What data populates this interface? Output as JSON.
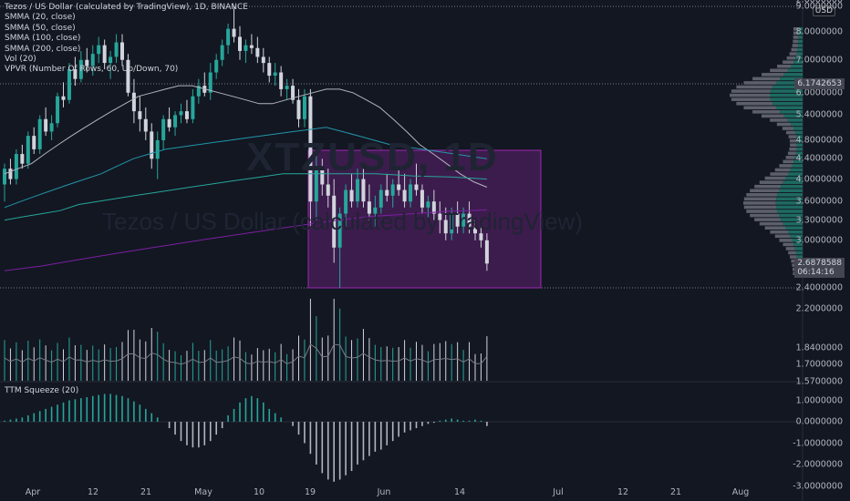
{
  "legend": {
    "title": "Tezos / US Dollar (calculated by TradingView), 1D, BINANCE",
    "lines": [
      "SMMA (20, close)",
      "SMMA (50, close)",
      "SMMA (100, close)",
      "SMMA (200, close)",
      "Vol (20)",
      "VPVR (Number Of Rows, 60, Up/Down, 70)"
    ]
  },
  "oscillator_label": "TTM Squeeze (20)",
  "watermark": {
    "symbol": "XTZUSD, 1D",
    "name": "Tezos / US Dollar (calculated by TradingView)"
  },
  "axis": {
    "currency": "USD"
  },
  "price_badge": {
    "value": "2.6878588",
    "countdown": "06:14:16"
  },
  "highlight_badge": {
    "value": "6.1742653"
  },
  "colors": {
    "up": "#26a69a",
    "down": "#d1d4dc",
    "bg": "#131722",
    "box": "#9c27b0",
    "sma20": "#b2b5be",
    "sma50": "#2196a8",
    "sma100": "#26a69a",
    "sma200": "#7b1fa2"
  },
  "chart_data": [
    {
      "type": "candlestick",
      "title": "Tezos / US Dollar (calculated by TradingView), 1D, BINANCE",
      "y_scale": "log",
      "y_ticks": [
        "9.0000000",
        "8.0000000",
        "7.0000000",
        "6.0000000",
        "5.4000000",
        "4.8000000",
        "4.4000000",
        "4.0000000",
        "3.6000000",
        "3.3000000",
        "3.0000000",
        "2.4000000",
        "2.2000000",
        "2.0000000",
        "1.8400000",
        "1.7000000",
        "1.5700000"
      ],
      "x_ticks": [
        "Apr",
        "12",
        "21",
        "May",
        "10",
        "19",
        "Jun",
        "14",
        "Jul",
        "12",
        "21",
        "Aug"
      ],
      "candles": [
        [
          3.9,
          4.3,
          3.6,
          4.2
        ],
        [
          4.2,
          4.4,
          3.9,
          4.0
        ],
        [
          4.0,
          4.6,
          3.9,
          4.5
        ],
        [
          4.5,
          4.7,
          4.2,
          4.3
        ],
        [
          4.3,
          5.0,
          4.2,
          4.9
        ],
        [
          4.9,
          5.1,
          4.5,
          4.6
        ],
        [
          4.6,
          5.4,
          4.5,
          5.3
        ],
        [
          5.3,
          5.6,
          4.9,
          5.0
        ],
        [
          5.0,
          5.4,
          4.8,
          5.2
        ],
        [
          5.2,
          6.0,
          5.1,
          5.9
        ],
        [
          5.9,
          6.3,
          5.6,
          5.8
        ],
        [
          5.8,
          6.9,
          5.7,
          6.7
        ],
        [
          6.7,
          7.1,
          6.2,
          6.4
        ],
        [
          6.4,
          7.3,
          6.3,
          7.0
        ],
        [
          7.0,
          7.4,
          6.6,
          6.8
        ],
        [
          6.8,
          7.5,
          6.5,
          7.2
        ],
        [
          7.2,
          7.8,
          6.9,
          7.5
        ],
        [
          7.5,
          7.7,
          6.7,
          6.9
        ],
        [
          6.9,
          7.3,
          6.4,
          7.1
        ],
        [
          7.1,
          7.9,
          6.9,
          7.6
        ],
        [
          7.6,
          7.9,
          6.8,
          7.0
        ],
        [
          7.0,
          7.2,
          5.9,
          6.0
        ],
        [
          6.0,
          6.4,
          5.2,
          5.5
        ],
        [
          5.5,
          5.9,
          5.0,
          5.3
        ],
        [
          5.3,
          5.6,
          4.8,
          5.0
        ],
        [
          5.0,
          5.2,
          4.2,
          4.4
        ],
        [
          4.4,
          5.0,
          4.0,
          4.8
        ],
        [
          4.8,
          5.4,
          4.6,
          5.3
        ],
        [
          5.3,
          5.6,
          5.0,
          5.1
        ],
        [
          5.1,
          5.5,
          4.9,
          5.4
        ],
        [
          5.4,
          5.7,
          5.2,
          5.5
        ],
        [
          5.5,
          5.8,
          5.2,
          5.3
        ],
        [
          5.3,
          6.1,
          5.2,
          5.9
        ],
        [
          5.9,
          6.4,
          5.7,
          6.2
        ],
        [
          6.2,
          6.6,
          5.9,
          6.0
        ],
        [
          6.0,
          6.9,
          5.8,
          6.6
        ],
        [
          6.6,
          7.2,
          6.4,
          7.0
        ],
        [
          7.0,
          7.7,
          6.8,
          7.5
        ],
        [
          7.5,
          8.3,
          7.2,
          8.1
        ],
        [
          8.1,
          9.0,
          7.6,
          7.8
        ],
        [
          7.8,
          8.2,
          7.0,
          7.3
        ],
        [
          7.3,
          7.7,
          6.9,
          7.5
        ],
        [
          7.5,
          7.9,
          7.2,
          7.4
        ],
        [
          7.4,
          7.8,
          6.9,
          7.1
        ],
        [
          7.1,
          7.4,
          6.6,
          6.9
        ],
        [
          6.9,
          7.1,
          6.3,
          6.5
        ],
        [
          6.5,
          6.9,
          6.2,
          6.6
        ],
        [
          6.6,
          6.8,
          5.9,
          6.1
        ],
        [
          6.1,
          6.4,
          5.8,
          6.2
        ],
        [
          6.2,
          6.4,
          5.7,
          5.8
        ],
        [
          5.8,
          6.1,
          5.1,
          5.3
        ],
        [
          5.3,
          6.1,
          5.1,
          5.9
        ],
        [
          5.9,
          6.1,
          3.2,
          3.6
        ],
        [
          3.6,
          4.5,
          3.3,
          4.2
        ],
        [
          4.2,
          4.4,
          3.7,
          3.9
        ],
        [
          3.9,
          4.2,
          3.5,
          3.7
        ],
        [
          3.7,
          4.0,
          2.7,
          2.9
        ],
        [
          2.9,
          3.5,
          2.4,
          3.4
        ],
        [
          3.4,
          3.9,
          3.2,
          3.8
        ],
        [
          3.8,
          4.1,
          3.5,
          3.6
        ],
        [
          3.6,
          4.2,
          3.5,
          4.0
        ],
        [
          4.0,
          4.3,
          3.5,
          3.6
        ],
        [
          3.6,
          3.9,
          3.3,
          3.4
        ],
        [
          3.4,
          3.7,
          3.2,
          3.5
        ],
        [
          3.5,
          3.9,
          3.4,
          3.8
        ],
        [
          3.8,
          4.1,
          3.6,
          3.7
        ],
        [
          3.7,
          4.0,
          3.5,
          3.9
        ],
        [
          3.9,
          4.2,
          3.7,
          3.8
        ],
        [
          3.8,
          4.1,
          3.5,
          3.6
        ],
        [
          3.6,
          4.0,
          3.5,
          3.9
        ],
        [
          3.9,
          4.3,
          3.7,
          3.8
        ],
        [
          3.8,
          3.9,
          3.4,
          3.5
        ],
        [
          3.5,
          3.7,
          3.3,
          3.6
        ],
        [
          3.6,
          3.8,
          3.3,
          3.4
        ],
        [
          3.4,
          3.6,
          3.1,
          3.3
        ],
        [
          3.3,
          3.5,
          3.0,
          3.1
        ],
        [
          3.1,
          3.5,
          3.0,
          3.4
        ],
        [
          3.4,
          3.6,
          3.1,
          3.2
        ],
        [
          3.2,
          3.5,
          3.1,
          3.4
        ],
        [
          3.4,
          3.6,
          3.1,
          3.2
        ],
        [
          3.2,
          3.3,
          3.0,
          3.1
        ],
        [
          3.1,
          3.2,
          2.9,
          3.0
        ],
        [
          3.0,
          3.1,
          2.6,
          2.69
        ]
      ],
      "sma": {
        "SMMA (20, close)": [
          4.1,
          4.2,
          4.3,
          4.5,
          4.7,
          4.9,
          5.1,
          5.3,
          5.5,
          5.7,
          5.9,
          6.0,
          6.1,
          6.2,
          6.2,
          6.1,
          6.0,
          5.9,
          5.8,
          5.7,
          5.7,
          5.8,
          5.9,
          6.0,
          6.1,
          6.1,
          6.0,
          5.8,
          5.6,
          5.3,
          5.0,
          4.7,
          4.5,
          4.3,
          4.1,
          3.95,
          3.85
        ],
        "SMMA (50, close)": [
          3.5,
          3.6,
          3.7,
          3.8,
          3.9,
          4.0,
          4.1,
          4.25,
          4.4,
          4.5,
          4.6,
          4.65,
          4.7,
          4.75,
          4.8,
          4.85,
          4.9,
          4.95,
          5.0,
          5.05,
          5.1,
          5.0,
          4.9,
          4.8,
          4.7,
          4.65,
          4.6,
          4.55,
          4.5,
          4.45,
          4.4
        ],
        "SMMA (100, close)": [
          3.3,
          3.35,
          3.4,
          3.45,
          3.55,
          3.6,
          3.65,
          3.7,
          3.75,
          3.8,
          3.85,
          3.9,
          3.95,
          4.0,
          4.05,
          4.1,
          4.1,
          4.1,
          4.1,
          4.1,
          4.1,
          4.08,
          4.06,
          4.05,
          4.04,
          4.02,
          4.0
        ],
        "SMMA (200, close)": [
          2.6,
          2.63,
          2.66,
          2.7,
          2.74,
          2.78,
          2.82,
          2.86,
          2.9,
          2.94,
          2.98,
          3.02,
          3.06,
          3.1,
          3.14,
          3.18,
          3.22,
          3.26,
          3.3,
          3.33,
          3.36,
          3.38,
          3.4,
          3.42,
          3.44,
          3.45,
          3.46
        ]
      }
    },
    {
      "type": "bar",
      "title": "TTM Squeeze (20)",
      "y_ticks": [
        "1.0000000",
        "0.0000000",
        "-1.0000000",
        "-2.0000000",
        "-3.0000000"
      ],
      "values": [
        0.05,
        0.1,
        0.15,
        0.2,
        0.3,
        0.4,
        0.5,
        0.6,
        0.7,
        0.8,
        0.9,
        1.0,
        1.05,
        1.1,
        1.15,
        1.2,
        1.25,
        1.3,
        1.3,
        1.25,
        1.2,
        1.1,
        0.95,
        0.8,
        0.6,
        0.4,
        0.2,
        0.0,
        -0.3,
        -0.6,
        -0.9,
        -1.1,
        -1.2,
        -1.2,
        -1.1,
        -0.9,
        -0.6,
        -0.3,
        0.3,
        0.6,
        0.9,
        1.1,
        1.2,
        1.1,
        0.9,
        0.6,
        0.4,
        0.2,
        0.0,
        -0.2,
        -0.6,
        -1.0,
        -1.5,
        -2.0,
        -2.4,
        -2.7,
        -2.8,
        -2.7,
        -2.5,
        -2.3,
        -2.0,
        -1.8,
        -1.6,
        -1.4,
        -1.3,
        -1.1,
        -0.9,
        -0.7,
        -0.5,
        -0.4,
        -0.3,
        -0.2,
        -0.1,
        -0.05,
        0.05,
        0.1,
        0.15,
        0.1,
        0.05,
        0.05,
        0.1,
        0.05,
        -0.2
      ]
    }
  ]
}
